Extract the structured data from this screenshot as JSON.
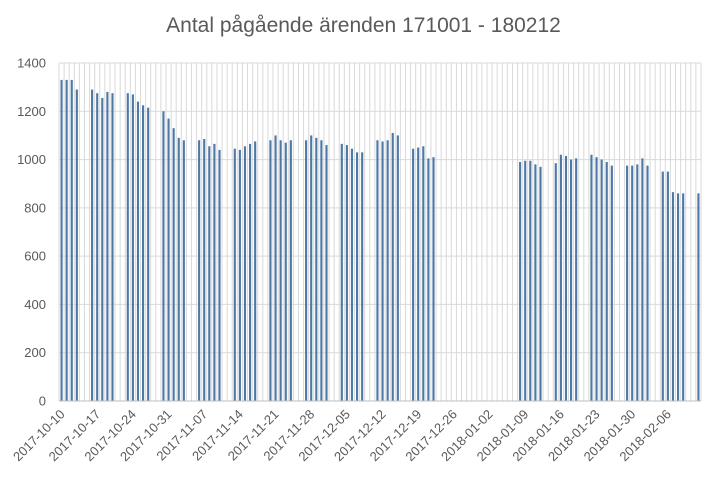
{
  "chart_data": {
    "type": "bar",
    "title": "Antal pågående ärenden 171001 - 180212",
    "xlabel": "",
    "ylabel": "",
    "ylim": [
      0,
      1400
    ],
    "yticks": [
      0,
      200,
      400,
      600,
      800,
      1000,
      1200,
      1400
    ],
    "grid": true,
    "legend": "none",
    "bar_color": "#4e79a7",
    "x_start": "2017-10-10",
    "x_end": "2018-02-12",
    "x_tick_labels": [
      "2017-10-10",
      "2017-10-17",
      "2017-10-24",
      "2017-10-31",
      "2017-11-07",
      "2017-11-14",
      "2017-11-21",
      "2017-11-28",
      "2017-12-05",
      "2017-12-12",
      "2017-12-19",
      "2017-12-26",
      "2018-01-02",
      "2018-01-09",
      "2018-01-16",
      "2018-01-23",
      "2018-01-30",
      "2018-02-06"
    ],
    "series": [
      {
        "values": [
          [
            "2017-10-10",
            1330
          ],
          [
            "2017-10-11",
            1330
          ],
          [
            "2017-10-12",
            1330
          ],
          [
            "2017-10-13",
            1290
          ],
          [
            "2017-10-16",
            1290
          ],
          [
            "2017-10-17",
            1275
          ],
          [
            "2017-10-18",
            1255
          ],
          [
            "2017-10-19",
            1280
          ],
          [
            "2017-10-20",
            1275
          ],
          [
            "2017-10-23",
            1275
          ],
          [
            "2017-10-24",
            1270
          ],
          [
            "2017-10-25",
            1240
          ],
          [
            "2017-10-26",
            1225
          ],
          [
            "2017-10-27",
            1215
          ],
          [
            "2017-10-30",
            1200
          ],
          [
            "2017-10-31",
            1170
          ],
          [
            "2017-11-01",
            1130
          ],
          [
            "2017-11-02",
            1090
          ],
          [
            "2017-11-03",
            1080
          ],
          [
            "2017-11-06",
            1080
          ],
          [
            "2017-11-07",
            1085
          ],
          [
            "2017-11-08",
            1055
          ],
          [
            "2017-11-09",
            1065
          ],
          [
            "2017-11-10",
            1040
          ],
          [
            "2017-11-13",
            1045
          ],
          [
            "2017-11-14",
            1040
          ],
          [
            "2017-11-15",
            1055
          ],
          [
            "2017-11-16",
            1065
          ],
          [
            "2017-11-17",
            1075
          ],
          [
            "2017-11-20",
            1080
          ],
          [
            "2017-11-21",
            1100
          ],
          [
            "2017-11-22",
            1080
          ],
          [
            "2017-11-23",
            1070
          ],
          [
            "2017-11-24",
            1080
          ],
          [
            "2017-11-27",
            1080
          ],
          [
            "2017-11-28",
            1100
          ],
          [
            "2017-11-29",
            1090
          ],
          [
            "2017-11-30",
            1080
          ],
          [
            "2017-12-01",
            1060
          ],
          [
            "2017-12-04",
            1065
          ],
          [
            "2017-12-05",
            1060
          ],
          [
            "2017-12-06",
            1045
          ],
          [
            "2017-12-07",
            1030
          ],
          [
            "2017-12-08",
            1030
          ],
          [
            "2017-12-11",
            1080
          ],
          [
            "2017-12-12",
            1075
          ],
          [
            "2017-12-13",
            1080
          ],
          [
            "2017-12-14",
            1110
          ],
          [
            "2017-12-15",
            1100
          ],
          [
            "2017-12-18",
            1045
          ],
          [
            "2017-12-19",
            1050
          ],
          [
            "2017-12-20",
            1055
          ],
          [
            "2017-12-21",
            1005
          ],
          [
            "2017-12-22",
            1010
          ],
          [
            "2018-01-08",
            990
          ],
          [
            "2018-01-09",
            995
          ],
          [
            "2018-01-10",
            995
          ],
          [
            "2018-01-11",
            980
          ],
          [
            "2018-01-12",
            970
          ],
          [
            "2018-01-15",
            985
          ],
          [
            "2018-01-16",
            1020
          ],
          [
            "2018-01-17",
            1015
          ],
          [
            "2018-01-18",
            1000
          ],
          [
            "2018-01-19",
            1005
          ],
          [
            "2018-01-22",
            1020
          ],
          [
            "2018-01-23",
            1010
          ],
          [
            "2018-01-24",
            1000
          ],
          [
            "2018-01-25",
            990
          ],
          [
            "2018-01-26",
            975
          ],
          [
            "2018-01-29",
            975
          ],
          [
            "2018-01-30",
            975
          ],
          [
            "2018-01-31",
            980
          ],
          [
            "2018-02-01",
            1005
          ],
          [
            "2018-02-02",
            975
          ],
          [
            "2018-02-05",
            950
          ],
          [
            "2018-02-06",
            950
          ],
          [
            "2018-02-07",
            865
          ],
          [
            "2018-02-08",
            860
          ],
          [
            "2018-02-09",
            860
          ],
          [
            "2018-02-12",
            860
          ]
        ]
      }
    ]
  }
}
